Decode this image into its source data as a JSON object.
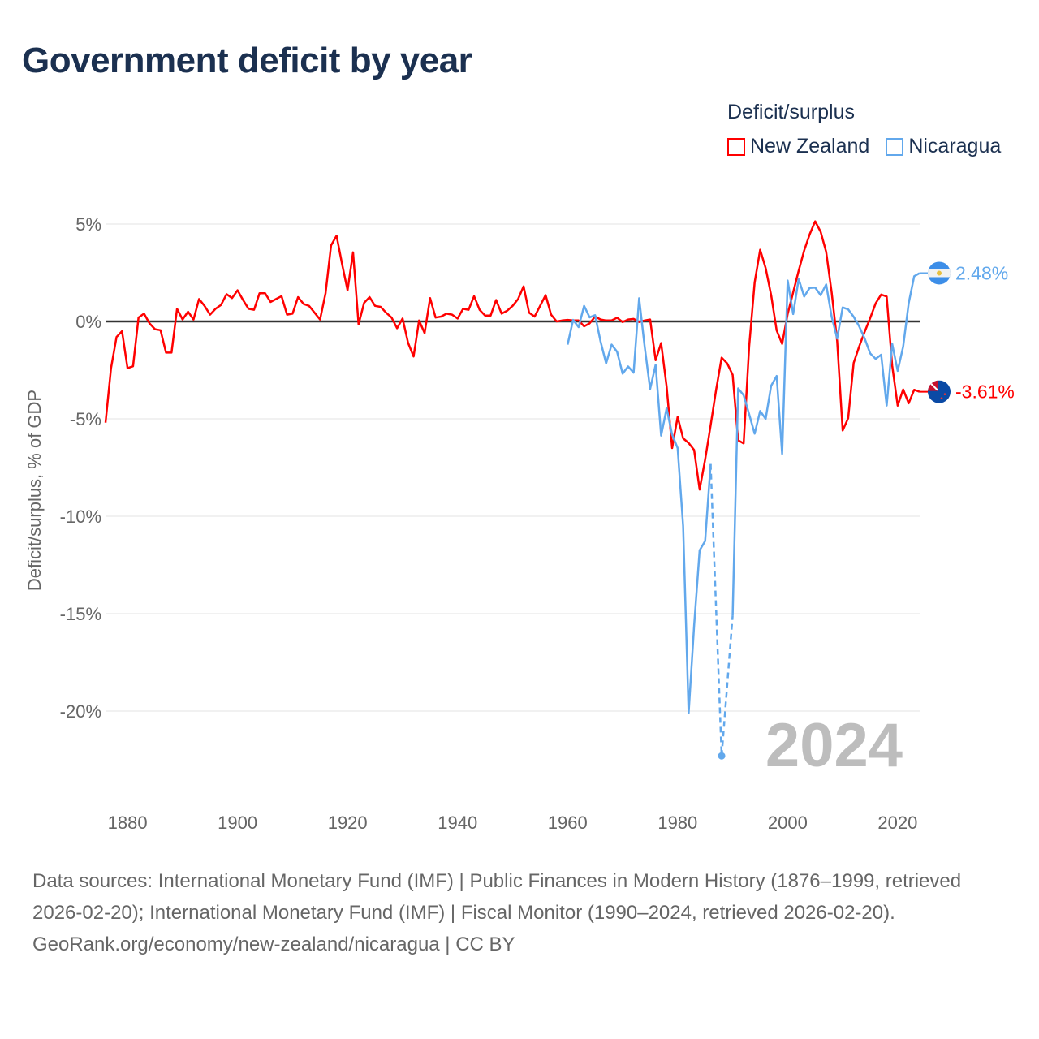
{
  "title": "Government deficit by year",
  "legend": {
    "title": "Deficit/surplus",
    "items": [
      {
        "label": "New Zealand",
        "color": "#ff0000"
      },
      {
        "label": "Nicaragua",
        "color": "#62a8ec"
      }
    ]
  },
  "year_label": "2024",
  "end_labels": {
    "new_zealand": "-3.61%",
    "nicaragua": "2.48%"
  },
  "footer": {
    "sources": "Data sources: International Monetary Fund (IMF) | Public Finances in Modern History (1876–1999, retrieved 2026-02-20); International Monetary Fund (IMF) | Fiscal Monitor (1990–2024, retrieved 2026-02-20).",
    "credit": "GeoRank.org/economy/new-zealand/nicaragua | CC BY"
  },
  "chart_data": {
    "type": "line",
    "title": "Government deficit by year",
    "ylabel": "Deficit/surplus, % of GDP",
    "xlabel": "",
    "xlim": [
      1876,
      2024
    ],
    "ylim": [
      -20,
      5
    ],
    "x_ticks": [
      1880,
      1900,
      1920,
      1940,
      1960,
      1980,
      2000,
      2020
    ],
    "x_tick_labels": [
      "1880",
      "1900",
      "1920",
      "1940",
      "1960",
      "1980",
      "2000",
      "2020"
    ],
    "y_ticks": [
      5,
      0,
      -5,
      -10,
      -15,
      -20
    ],
    "y_tick_labels": [
      "5%",
      "0%",
      "-5%",
      "-10%",
      "-15%",
      "-20%"
    ],
    "grid": true,
    "legend_position": "top-right",
    "series": [
      {
        "name": "New Zealand",
        "color": "#ff0000",
        "start_year": 1876,
        "values": [
          -5.2,
          -2.4,
          -0.8,
          -0.5,
          -2.4,
          -2.3,
          0.2,
          0.4,
          -0.1,
          -0.4,
          -0.45,
          -1.6,
          -1.6,
          0.65,
          0.1,
          0.5,
          0.1,
          1.15,
          0.8,
          0.35,
          0.65,
          0.85,
          1.4,
          1.2,
          1.6,
          1.1,
          0.65,
          0.6,
          1.45,
          1.45,
          1.0,
          1.15,
          1.3,
          0.35,
          0.4,
          1.25,
          0.9,
          0.8,
          0.45,
          0.1,
          1.45,
          3.9,
          4.4,
          2.95,
          1.6,
          3.55,
          -0.15,
          0.95,
          1.25,
          0.8,
          0.75,
          0.45,
          0.2,
          -0.35,
          0.15,
          -1.1,
          -1.8,
          0.05,
          -0.6,
          1.2,
          0.2,
          0.25,
          0.4,
          0.35,
          0.15,
          0.65,
          0.6,
          1.3,
          0.6,
          0.3,
          0.3,
          1.1,
          0.4,
          0.55,
          0.8,
          1.15,
          1.8,
          0.45,
          0.25,
          0.8,
          1.35,
          0.35,
          0.0,
          0.05,
          0.08,
          0.05,
          0.05,
          -0.25,
          -0.1,
          0.25,
          0.1,
          0.05,
          0.05,
          0.19,
          -0.03,
          0.1,
          0.13,
          -0.03,
          0.05,
          0.1,
          -1.99,
          -1.11,
          -3.34,
          -6.5,
          -4.9,
          -6.0,
          -6.24,
          -6.6,
          -8.63,
          -7.09,
          -5.33,
          -3.5,
          -1.86,
          -2.15,
          -2.74,
          -6.1,
          -6.26,
          -1.3,
          2.0,
          3.68,
          2.74,
          1.35,
          -0.46,
          -1.15,
          0.38,
          1.49,
          2.6,
          3.64,
          4.47,
          5.14,
          4.6,
          3.57,
          1.49,
          -1.01,
          -5.6,
          -4.97,
          -2.13,
          -1.29,
          -0.53,
          0.17,
          0.93,
          1.38,
          1.28,
          -2.26,
          -4.32,
          -3.49,
          -4.2,
          -3.51,
          -3.61
        ]
      },
      {
        "name": "Nicaragua",
        "color": "#62a8ec",
        "start_year": 1960,
        "values": [
          -1.19,
          0.08,
          -0.29,
          0.8,
          0.21,
          0.32,
          -1.04,
          -2.15,
          -1.19,
          -1.56,
          -2.68,
          -2.31,
          -2.63,
          1.19,
          -1.27,
          -3.47,
          -2.23,
          -5.86,
          -4.46,
          -5.81,
          -6.5,
          -10.5,
          -20.1,
          -15.6,
          -11.75,
          -11.27,
          -7.32,
          null,
          -22.3,
          null,
          -15.1,
          -3.44,
          -3.79,
          -4.76,
          -5.76,
          -4.6,
          -5.0,
          -3.3,
          -2.8,
          -6.8,
          2.1,
          0.38,
          2.18,
          1.28,
          1.72,
          1.74,
          1.35,
          1.9,
          0.24,
          -0.88,
          0.72,
          0.62,
          0.24,
          -0.25,
          -0.88,
          -1.64,
          -1.92,
          -1.71,
          -4.32,
          -1.15,
          -2.54,
          -1.29,
          0.93,
          2.32,
          2.48
        ]
      }
    ]
  }
}
